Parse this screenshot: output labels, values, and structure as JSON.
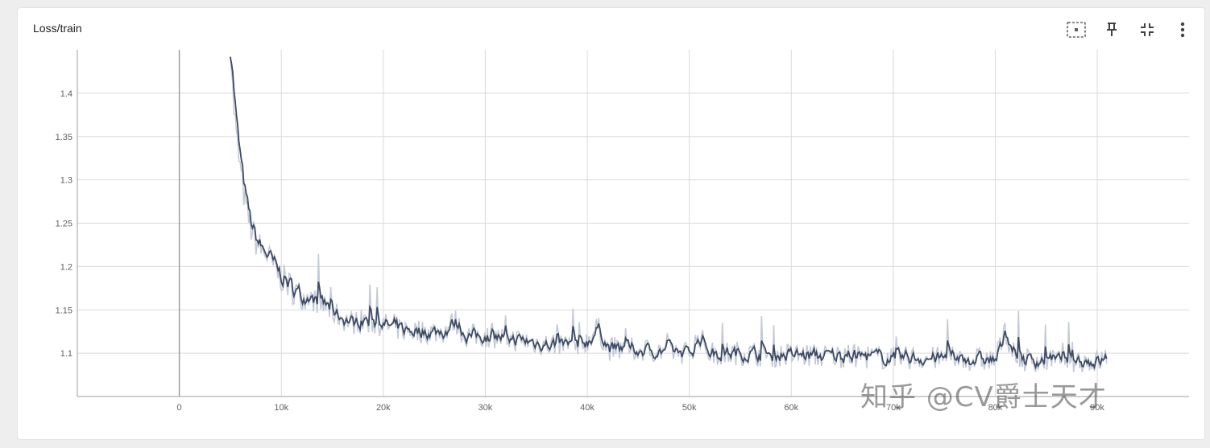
{
  "card": {
    "title": "Loss/train"
  },
  "toolbar": {
    "icons": [
      "fit-domain-icon",
      "pin-icon",
      "collapse-icon",
      "more-vert-icon"
    ]
  },
  "watermark": "知乎 @CV爵士天才",
  "colors": {
    "smoothed": "#3d4a63",
    "raw": "#c3c9d6",
    "grid": "#dadada",
    "zero_line": "#9e9e9e"
  },
  "chart_data": {
    "type": "line",
    "title": "Loss/train",
    "xlabel": "",
    "ylabel": "",
    "xlim": [
      -10000,
      99000
    ],
    "ylim": [
      1.05,
      1.45
    ],
    "x_ticks": [
      0,
      10000,
      20000,
      30000,
      40000,
      50000,
      60000,
      70000,
      80000,
      90000
    ],
    "x_tick_labels": [
      "0",
      "10k",
      "20k",
      "30k",
      "40k",
      "50k",
      "60k",
      "70k",
      "80k",
      "90k"
    ],
    "y_ticks": [
      1.1,
      1.15,
      1.2,
      1.25,
      1.3,
      1.35,
      1.4
    ],
    "y_tick_labels": [
      "1.1",
      "1.15",
      "1.2",
      "1.25",
      "1.3",
      "1.35",
      "1.4"
    ],
    "grid": true,
    "series": [
      {
        "kind": "smoothed",
        "x": [
          5000,
          5300,
          5600,
          6000,
          6500,
          7000,
          7500,
          8000,
          8500,
          9000,
          9500,
          10000,
          11000,
          12000,
          13000,
          14000,
          15000,
          16000,
          17000,
          18000,
          19000,
          20000,
          22000,
          24000,
          26000,
          27000,
          28000,
          30000,
          32000,
          34000,
          36000,
          38000,
          40000,
          41000,
          42000,
          44000,
          46000,
          48000,
          50000,
          51000,
          52000,
          55000,
          58000,
          60000,
          63000,
          66000,
          68000,
          70000,
          72000,
          74000,
          76000,
          78000,
          80000,
          81000,
          82000,
          84000,
          86000,
          88000,
          90000,
          91000
        ],
        "y": [
          1.46,
          1.39,
          1.35,
          1.31,
          1.27,
          1.245,
          1.23,
          1.22,
          1.215,
          1.205,
          1.195,
          1.188,
          1.175,
          1.165,
          1.162,
          1.157,
          1.148,
          1.14,
          1.135,
          1.138,
          1.135,
          1.133,
          1.127,
          1.125,
          1.125,
          1.138,
          1.12,
          1.12,
          1.117,
          1.114,
          1.11,
          1.11,
          1.114,
          1.13,
          1.105,
          1.105,
          1.103,
          1.103,
          1.1,
          1.12,
          1.1,
          1.1,
          1.098,
          1.098,
          1.097,
          1.097,
          1.096,
          1.094,
          1.095,
          1.094,
          1.094,
          1.093,
          1.092,
          1.125,
          1.093,
          1.092,
          1.091,
          1.092,
          1.09,
          1.095
        ]
      }
    ]
  }
}
